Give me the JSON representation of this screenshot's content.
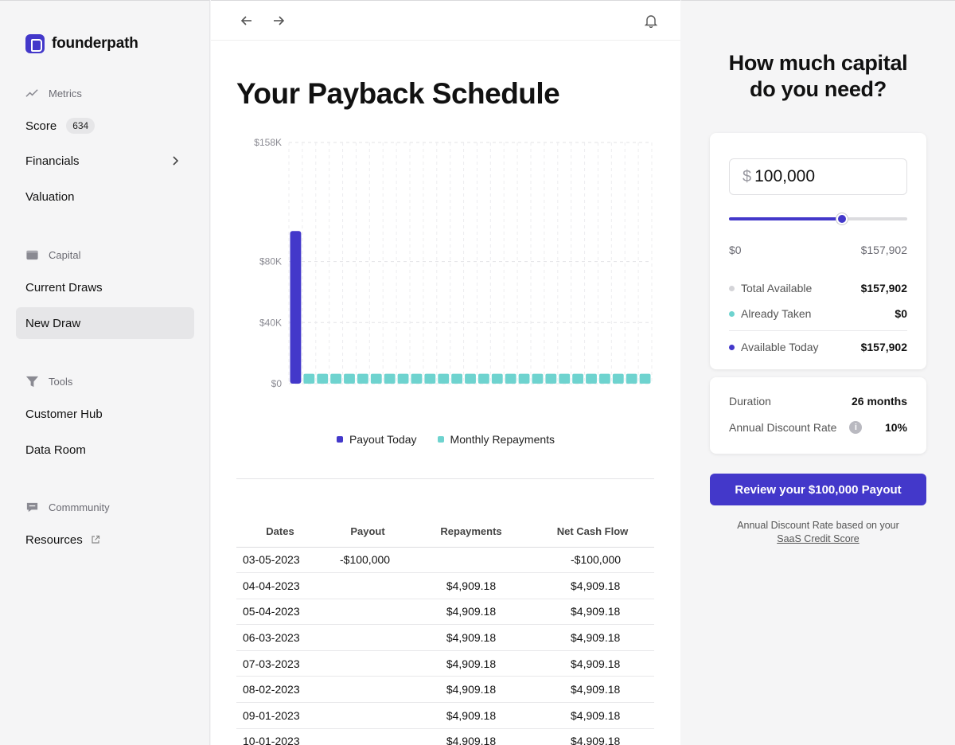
{
  "app": {
    "brand": "founderpath"
  },
  "sidebar": {
    "sections": [
      {
        "label": "Metrics",
        "icon": "trend-line-icon"
      },
      {
        "label": "Capital",
        "icon": "wallet-icon"
      },
      {
        "label": "Tools",
        "icon": "funnel-icon"
      },
      {
        "label": "Commmunity",
        "icon": "chat-icon"
      }
    ],
    "items": [
      {
        "label": "Score",
        "badge": "634"
      },
      {
        "label": "Financials"
      },
      {
        "label": "Valuation"
      },
      {
        "label": "Current Draws"
      },
      {
        "label": "New Draw",
        "active": true
      },
      {
        "label": "Customer Hub"
      },
      {
        "label": "Data Room"
      },
      {
        "label": "Resources"
      }
    ]
  },
  "main": {
    "title": "Your Payback Schedule",
    "legend": [
      "Payout Today",
      "Monthly Repayments"
    ],
    "table": {
      "headers": [
        "Dates",
        "Payout",
        "Repayments",
        "Net Cash Flow"
      ],
      "rows": [
        [
          "03-05-2023",
          "-$100,000",
          "",
          "-$100,000"
        ],
        [
          "04-04-2023",
          "",
          "$4,909.18",
          "$4,909.18"
        ],
        [
          "05-04-2023",
          "",
          "$4,909.18",
          "$4,909.18"
        ],
        [
          "06-03-2023",
          "",
          "$4,909.18",
          "$4,909.18"
        ],
        [
          "07-03-2023",
          "",
          "$4,909.18",
          "$4,909.18"
        ],
        [
          "08-02-2023",
          "",
          "$4,909.18",
          "$4,909.18"
        ],
        [
          "09-01-2023",
          "",
          "$4,909.18",
          "$4,909.18"
        ],
        [
          "10-01-2023",
          "",
          "$4,909.18",
          "$4,909.18"
        ]
      ]
    }
  },
  "chart_data": {
    "type": "bar",
    "title": "",
    "xlabel": "",
    "ylabel": "",
    "y_ticks": [
      "$0",
      "$40K",
      "$80K",
      "$158K"
    ],
    "y_tick_values": [
      0,
      40000,
      80000,
      158000
    ],
    "ylim": [
      0,
      158000
    ],
    "grid": true,
    "legend_position": "bottom",
    "colors": {
      "Payout Today": "#4338ca",
      "Monthly Repayments": "#6ed3cf"
    },
    "series": [
      {
        "name": "Payout Today",
        "values": [
          100000
        ]
      },
      {
        "name": "Monthly Repayments",
        "values": [
          4909.18,
          4909.18,
          4909.18,
          4909.18,
          4909.18,
          4909.18,
          4909.18,
          4909.18,
          4909.18,
          4909.18,
          4909.18,
          4909.18,
          4909.18,
          4909.18,
          4909.18,
          4909.18,
          4909.18,
          4909.18,
          4909.18,
          4909.18,
          4909.18,
          4909.18,
          4909.18,
          4909.18,
          4909.18,
          4909.18
        ]
      }
    ]
  },
  "panel": {
    "title_line1": "How much capital",
    "title_line2": "do you need?",
    "currency_symbol": "$",
    "amount": "100,000",
    "slider": {
      "value": 100000,
      "max": 157902
    },
    "range_min": "$0",
    "range_max": "$157,902",
    "stats": [
      {
        "label": "Total Available",
        "value": "$157,902",
        "color": "#d4d4d8"
      },
      {
        "label": "Already Taken",
        "value": "$0",
        "color": "#6ed3cf"
      },
      {
        "label": "Available Today",
        "value": "$157,902",
        "color": "#4338ca"
      }
    ],
    "duration_label": "Duration",
    "duration_value": "26 months",
    "rate_label": "Annual Discount Rate",
    "rate_value": "10%",
    "cta": "Review your $100,000 Payout",
    "footnote_line1": "Annual Discount Rate based on your",
    "footnote_link": "SaaS Credit Score"
  }
}
